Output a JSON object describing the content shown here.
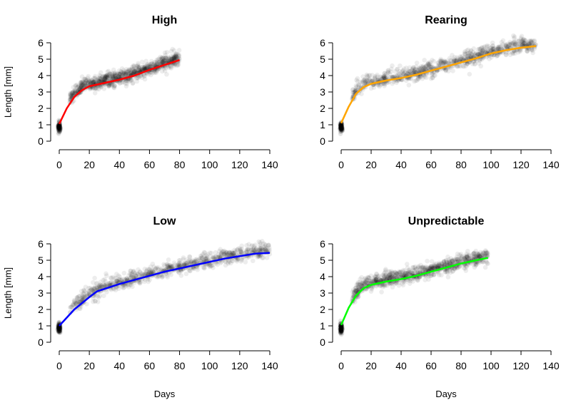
{
  "chart_data": [
    {
      "type": "scatter",
      "title": "High",
      "xlabel": "",
      "ylabel": "Length [mm]",
      "xlim": [
        0,
        140
      ],
      "ylim": [
        0,
        6
      ],
      "color": "#ff0000",
      "max_day": 80,
      "xticks": [
        "0",
        "20",
        "40",
        "60",
        "80",
        "100",
        "120",
        "140"
      ],
      "yticks": [
        "0",
        "1",
        "2",
        "3",
        "4",
        "5",
        "6"
      ],
      "fit": [
        [
          0,
          1.05
        ],
        [
          5,
          2.0
        ],
        [
          10,
          2.7
        ],
        [
          15,
          3.1
        ],
        [
          20,
          3.35
        ],
        [
          30,
          3.55
        ],
        [
          40,
          3.75
        ],
        [
          50,
          4.0
        ],
        [
          60,
          4.35
        ],
        [
          70,
          4.65
        ],
        [
          80,
          4.95
        ]
      ]
    },
    {
      "type": "scatter",
      "title": "Rearing",
      "xlabel": "",
      "ylabel": "",
      "xlim": [
        0,
        140
      ],
      "ylim": [
        0,
        6
      ],
      "color": "#ffa500",
      "max_day": 130,
      "xticks": [
        "0",
        "20",
        "40",
        "60",
        "80",
        "100",
        "120",
        "140"
      ],
      "yticks": [
        "0",
        "1",
        "2",
        "3",
        "4",
        "5",
        "6"
      ],
      "fit": [
        [
          0,
          1.1
        ],
        [
          5,
          2.1
        ],
        [
          10,
          2.9
        ],
        [
          15,
          3.3
        ],
        [
          20,
          3.5
        ],
        [
          30,
          3.7
        ],
        [
          40,
          3.85
        ],
        [
          50,
          4.05
        ],
        [
          60,
          4.3
        ],
        [
          70,
          4.55
        ],
        [
          80,
          4.8
        ],
        [
          90,
          5.05
        ],
        [
          100,
          5.35
        ],
        [
          110,
          5.55
        ],
        [
          120,
          5.7
        ],
        [
          130,
          5.8
        ]
      ]
    },
    {
      "type": "scatter",
      "title": "Low",
      "xlabel": "Days",
      "ylabel": "Length [mm]",
      "xlim": [
        0,
        140
      ],
      "ylim": [
        0,
        6
      ],
      "color": "#0000ff",
      "max_day": 140,
      "xticks": [
        "0",
        "20",
        "40",
        "60",
        "80",
        "100",
        "120",
        "140"
      ],
      "yticks": [
        "0",
        "1",
        "2",
        "3",
        "4",
        "5",
        "6"
      ],
      "fit": [
        [
          0,
          1.0
        ],
        [
          10,
          2.0
        ],
        [
          20,
          2.75
        ],
        [
          25,
          3.1
        ],
        [
          30,
          3.25
        ],
        [
          40,
          3.55
        ],
        [
          50,
          3.8
        ],
        [
          60,
          4.05
        ],
        [
          70,
          4.3
        ],
        [
          80,
          4.5
        ],
        [
          90,
          4.7
        ],
        [
          100,
          4.9
        ],
        [
          110,
          5.1
        ],
        [
          120,
          5.25
        ],
        [
          130,
          5.4
        ],
        [
          140,
          5.45
        ]
      ]
    },
    {
      "type": "scatter",
      "title": "Unpredictable",
      "xlabel": "Days",
      "ylabel": "",
      "xlim": [
        0,
        140
      ],
      "ylim": [
        0,
        6
      ],
      "color": "#00ff00",
      "max_day": 98,
      "xticks": [
        "0",
        "20",
        "40",
        "60",
        "80",
        "100",
        "120",
        "140"
      ],
      "yticks": [
        "0",
        "1",
        "2",
        "3",
        "4",
        "5",
        "6"
      ],
      "fit": [
        [
          0,
          1.05
        ],
        [
          5,
          2.1
        ],
        [
          10,
          2.85
        ],
        [
          15,
          3.3
        ],
        [
          20,
          3.5
        ],
        [
          30,
          3.7
        ],
        [
          40,
          3.85
        ],
        [
          50,
          4.05
        ],
        [
          60,
          4.3
        ],
        [
          70,
          4.55
        ],
        [
          80,
          4.8
        ],
        [
          90,
          5.0
        ],
        [
          98,
          5.15
        ]
      ]
    }
  ]
}
